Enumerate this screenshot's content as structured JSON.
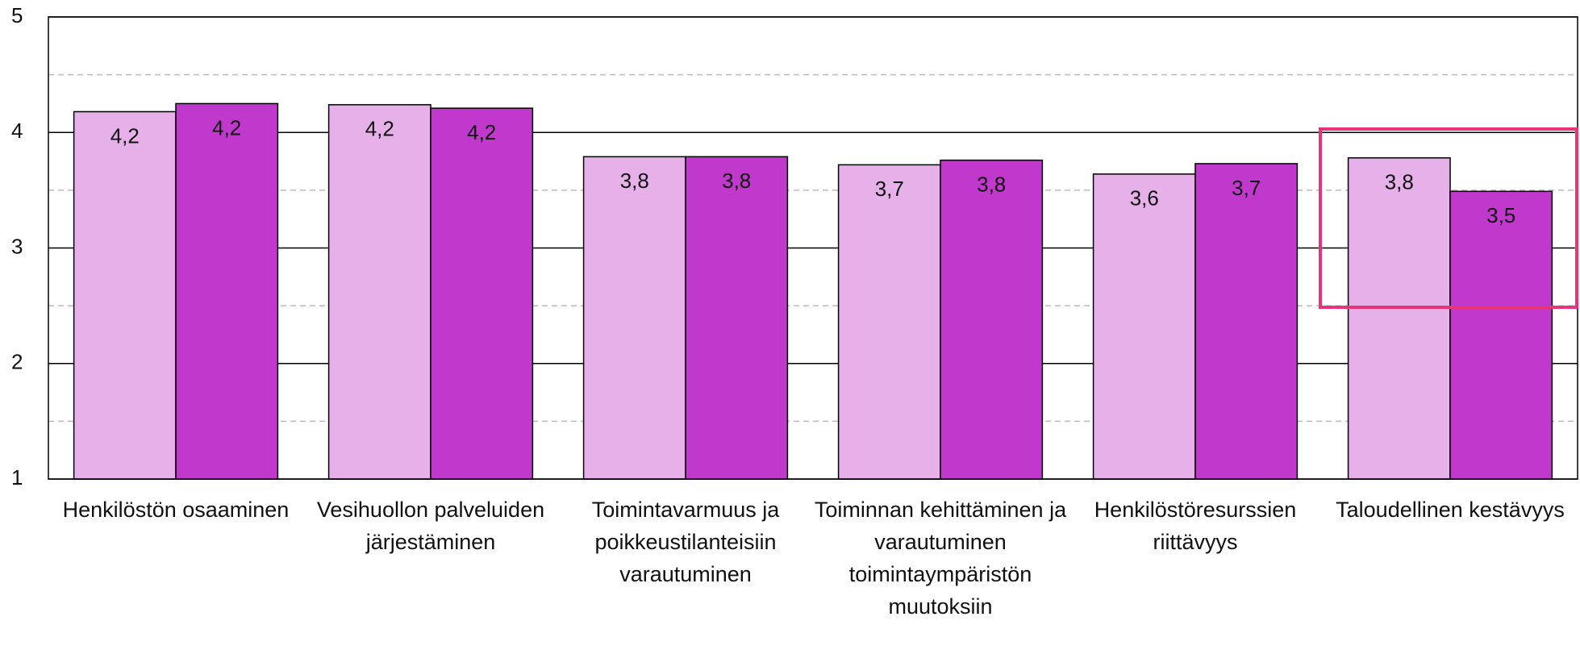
{
  "chart_data": {
    "type": "bar",
    "categories": [
      "Henkilöstön osaaminen",
      "Vesihuollon palveluiden järjestäminen",
      "Toimintavarmuus ja poikkeustilanteisiin varautuminen",
      "Toiminnan kehittäminen ja varautuminen toimintaympäristön muutoksiin",
      "Henkilöstöresurssien riittävyys",
      "Taloudellinen kestävyys"
    ],
    "series": [
      {
        "color": "#e6b0e8",
        "values": [
          4.18,
          4.24,
          3.79,
          3.72,
          3.64,
          3.78
        ],
        "value_labels": [
          "4,2",
          "4,2",
          "3,8",
          "3,7",
          "3,6",
          "3,8"
        ]
      },
      {
        "color": "#c038cc",
        "values": [
          4.25,
          4.21,
          3.79,
          3.76,
          3.73,
          3.49
        ],
        "value_labels": [
          "4,2",
          "4,2",
          "3,8",
          "3,8",
          "3,7",
          "3,5"
        ]
      }
    ],
    "ylim": [
      1,
      5
    ],
    "yticks": [
      1,
      2,
      3,
      4,
      5
    ],
    "minor_yticks": [
      1.5,
      2.5,
      3.5,
      4.5
    ],
    "grid": true
  }
}
